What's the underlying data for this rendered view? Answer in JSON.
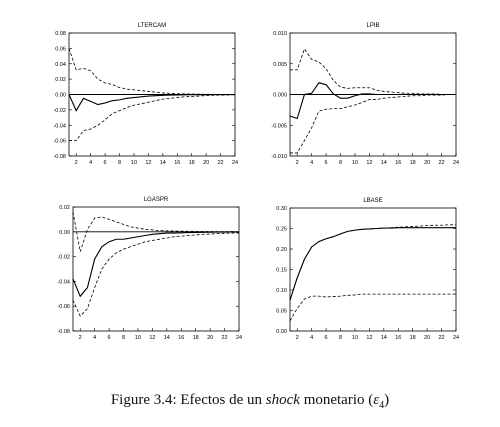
{
  "figure": {
    "caption_prefix": "Figure 3.4: Efectos de un",
    "caption_emph": "shock",
    "caption_middle": "monetario (",
    "caption_symbol": "ε",
    "caption_subscript": "4",
    "caption_suffix": ")"
  },
  "chart_data": [
    {
      "type": "line",
      "title": "LTERCAM",
      "x": [
        1,
        2,
        3,
        4,
        5,
        6,
        7,
        8,
        9,
        10,
        11,
        12,
        13,
        14,
        15,
        16,
        17,
        18,
        19,
        20,
        21,
        22,
        23,
        24
      ],
      "xticks": [
        2,
        4,
        6,
        8,
        10,
        12,
        14,
        16,
        18,
        20,
        22,
        24
      ],
      "ylim": [
        -0.08,
        0.08
      ],
      "yticks": [
        -0.08,
        -0.06,
        -0.04,
        -0.02,
        0.0,
        0.02,
        0.04,
        0.06,
        0.08
      ],
      "ytick_labels": [
        "-0.08",
        "-0.06",
        "-0.04",
        "-0.02",
        "0.00",
        "0.02",
        "0.04",
        "0.06",
        "0.08"
      ],
      "zero_line": true,
      "series": [
        {
          "style": "solid",
          "values": [
            0.0,
            -0.021,
            -0.005,
            -0.009,
            -0.013,
            -0.011,
            -0.008,
            -0.007,
            -0.005,
            -0.004,
            -0.003,
            -0.002,
            -0.0015,
            -0.001,
            -0.0008,
            -0.0006,
            -0.0004,
            -0.0003,
            -0.0002,
            -0.0002,
            -0.0001,
            -0.0001,
            -0.0001,
            0.0
          ]
        },
        {
          "style": "dashed",
          "values": [
            0.06,
            0.032,
            0.034,
            0.031,
            0.02,
            0.015,
            0.013,
            0.009,
            0.007,
            0.006,
            0.005,
            0.004,
            0.003,
            0.002,
            0.0015,
            0.001,
            0.0008,
            0.0006,
            0.0004,
            0.0003,
            0.0002,
            0.0002,
            0.0001,
            0.0001
          ]
        },
        {
          "style": "dashed",
          "values": [
            -0.06,
            -0.06,
            -0.047,
            -0.045,
            -0.04,
            -0.033,
            -0.025,
            -0.021,
            -0.017,
            -0.014,
            -0.012,
            -0.01,
            -0.008,
            -0.006,
            -0.005,
            -0.004,
            -0.003,
            -0.0025,
            -0.002,
            -0.0015,
            -0.001,
            -0.0008,
            -0.0006,
            -0.0004
          ]
        }
      ]
    },
    {
      "type": "line",
      "title": "LPIB",
      "x": [
        1,
        2,
        3,
        4,
        5,
        6,
        7,
        8,
        9,
        10,
        11,
        12,
        13,
        14,
        15,
        16,
        17,
        18,
        19,
        20,
        21,
        22,
        23,
        24
      ],
      "xticks": [
        2,
        4,
        6,
        8,
        10,
        12,
        14,
        16,
        18,
        20,
        22,
        24
      ],
      "ylim": [
        -0.01,
        0.01
      ],
      "yticks": [
        -0.01,
        -0.005,
        0.0,
        0.005,
        0.01
      ],
      "ytick_labels": [
        "-0.010",
        "-0.005",
        "0.000",
        "0.005",
        "0.010"
      ],
      "zero_line": true,
      "series": [
        {
          "style": "solid",
          "values": [
            -0.0035,
            -0.0039,
            0.0,
            0.0002,
            0.0019,
            0.0016,
            0.0001,
            -0.0006,
            -0.0006,
            -0.0002,
            0.0001,
            0.0001,
            0.0,
            0.0,
            0.0,
            0.0,
            0.0,
            0.0,
            0.0,
            0.0,
            0.0,
            0.0,
            0.0,
            0.0
          ]
        },
        {
          "style": "dashed",
          "values": [
            0.004,
            0.004,
            0.0074,
            0.0057,
            0.0053,
            0.0042,
            0.0023,
            0.0012,
            0.001,
            0.0011,
            0.0011,
            0.0011,
            0.0007,
            0.0005,
            0.0004,
            0.0003,
            0.0002,
            0.0002,
            0.0001,
            0.0001,
            0.0001,
            0.0,
            0.0,
            0.0
          ]
        },
        {
          "style": "dashed",
          "values": [
            -0.0095,
            -0.0095,
            -0.0075,
            -0.0054,
            -0.0027,
            -0.0024,
            -0.0023,
            -0.0023,
            -0.002,
            -0.0017,
            -0.0013,
            -0.0008,
            -0.0008,
            -0.0006,
            -0.0005,
            -0.0004,
            -0.0003,
            -0.0002,
            -0.0002,
            -0.0001,
            -0.0001,
            -0.0001,
            0.0,
            0.0
          ]
        }
      ]
    },
    {
      "type": "line",
      "title": "LGASPR",
      "x": [
        1,
        2,
        3,
        4,
        5,
        6,
        7,
        8,
        9,
        10,
        11,
        12,
        13,
        14,
        15,
        16,
        17,
        18,
        19,
        20,
        21,
        22,
        23,
        24
      ],
      "xticks": [
        2,
        4,
        6,
        8,
        10,
        12,
        14,
        16,
        18,
        20,
        22,
        24
      ],
      "ylim": [
        -0.08,
        0.02
      ],
      "yticks": [
        -0.08,
        -0.06,
        -0.04,
        -0.02,
        0.0,
        0.02
      ],
      "ytick_labels": [
        "-0.08",
        "-0.06",
        "-0.04",
        "-0.02",
        "0.00",
        "0.02"
      ],
      "zero_line": true,
      "series": [
        {
          "style": "solid",
          "values": [
            -0.038,
            -0.052,
            -0.045,
            -0.022,
            -0.012,
            -0.008,
            -0.006,
            -0.006,
            -0.005,
            -0.004,
            -0.003,
            -0.002,
            -0.0015,
            -0.001,
            -0.001,
            -0.0008,
            -0.0006,
            -0.0005,
            -0.0004,
            -0.0003,
            -0.0002,
            -0.0002,
            -0.0001,
            -0.0001
          ]
        },
        {
          "style": "dashed",
          "values": [
            0.016,
            -0.016,
            0.002,
            0.011,
            0.012,
            0.01,
            0.008,
            0.006,
            0.004,
            0.003,
            0.002,
            0.0015,
            0.001,
            0.0008,
            0.0006,
            0.0005,
            0.0004,
            0.0003,
            0.0002,
            0.0002,
            0.0001,
            0.0001,
            0.0001,
            0.0
          ]
        },
        {
          "style": "dashed",
          "values": [
            -0.055,
            -0.068,
            -0.062,
            -0.045,
            -0.03,
            -0.022,
            -0.017,
            -0.014,
            -0.012,
            -0.01,
            -0.008,
            -0.007,
            -0.006,
            -0.005,
            -0.004,
            -0.0035,
            -0.003,
            -0.0025,
            -0.002,
            -0.0018,
            -0.0015,
            -0.0012,
            -0.001,
            -0.0009
          ]
        }
      ]
    },
    {
      "type": "line",
      "title": "LBASE",
      "x": [
        1,
        2,
        3,
        4,
        5,
        6,
        7,
        8,
        9,
        10,
        11,
        12,
        13,
        14,
        15,
        16,
        17,
        18,
        19,
        20,
        21,
        22,
        23,
        24
      ],
      "xticks": [
        2,
        4,
        6,
        8,
        10,
        12,
        14,
        16,
        18,
        20,
        22,
        24
      ],
      "ylim": [
        0.0,
        0.3
      ],
      "yticks": [
        0.0,
        0.05,
        0.1,
        0.15,
        0.2,
        0.25,
        0.3
      ],
      "ytick_labels": [
        "0.00",
        "0.05",
        "0.10",
        "0.15",
        "0.20",
        "0.25",
        "0.30"
      ],
      "zero_line": false,
      "series": [
        {
          "style": "solid",
          "values": [
            0.075,
            0.13,
            0.175,
            0.205,
            0.218,
            0.225,
            0.23,
            0.237,
            0.243,
            0.246,
            0.248,
            0.249,
            0.25,
            0.251,
            0.251,
            0.252,
            0.252,
            0.252,
            0.252,
            0.252,
            0.252,
            0.252,
            0.252,
            0.252
          ]
        },
        {
          "style": "dashed",
          "values": [
            0.075,
            0.13,
            0.175,
            0.205,
            0.218,
            0.225,
            0.23,
            0.237,
            0.243,
            0.246,
            0.248,
            0.249,
            0.25,
            0.251,
            0.252,
            0.253,
            0.254,
            0.255,
            0.256,
            0.257,
            0.258,
            0.258,
            0.259,
            0.259
          ]
        },
        {
          "style": "dashed",
          "values": [
            0.025,
            0.055,
            0.078,
            0.085,
            0.085,
            0.083,
            0.084,
            0.085,
            0.087,
            0.088,
            0.09,
            0.09,
            0.09,
            0.09,
            0.09,
            0.09,
            0.09,
            0.09,
            0.09,
            0.09,
            0.09,
            0.09,
            0.09,
            0.09
          ]
        }
      ]
    }
  ]
}
